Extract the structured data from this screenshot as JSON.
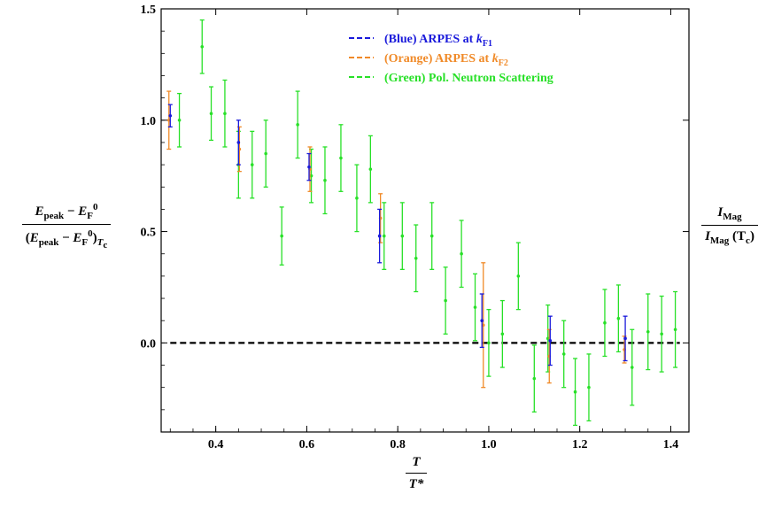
{
  "chart_data": {
    "type": "scatter",
    "title": "",
    "xlabel": {
      "numerator": "T",
      "denominator": "T*"
    },
    "ylabel_left": {
      "numerator": "E",
      "num_sub": "peak",
      "num_minus": " − ",
      "num_e2": "E",
      "num_e2_sub": "F",
      "num_e2_sup": "0",
      "den_open": "(",
      "den_e": "E",
      "den_sub": "peak",
      "den_minus": " − ",
      "den_e2": "E",
      "den_e2_sub": "F",
      "den_e2_sup": "0",
      "den_close": ")",
      "den_outer_sub": "T",
      "den_outer_sub_sub": "c"
    },
    "ylabel_right": {
      "numerator": "I",
      "num_sub": "Mag",
      "den": "I",
      "den_sub": "Mag",
      "den_tail": " (T",
      "den_tail_sub": "c",
      "den_close": ")"
    },
    "xlim": [
      0.28,
      1.44
    ],
    "ylim": [
      -0.4,
      1.5
    ],
    "x_ticks": [
      0.4,
      0.6,
      0.8,
      1.0,
      1.2,
      1.4
    ],
    "x_tick_labels": [
      "0.4",
      "0.6",
      "0.8",
      "1.0",
      "1.2",
      "1.4"
    ],
    "y_ticks": [
      0.0,
      0.5,
      1.0,
      1.5
    ],
    "y_tick_labels": [
      "0.0",
      "0.5",
      "1.0",
      "1.5"
    ],
    "reference_line": {
      "y": 0.0,
      "style": "dashed",
      "color": "#000000"
    },
    "legend": {
      "placement": "top-right",
      "entries": [
        {
          "prefix": "(Blue) ARPES at ",
          "k": "k",
          "sub": "F1",
          "color": "#1a1adb"
        },
        {
          "prefix": "(Orange) ARPES at ",
          "k": "k",
          "sub": "F2",
          "color": "#f08a28"
        },
        {
          "prefix": "(Green) Pol. Neutron Scattering",
          "k": "",
          "sub": "",
          "color": "#28e028"
        }
      ]
    },
    "series": [
      {
        "name": "(Blue) ARPES at kF1",
        "color": "#1a1adb",
        "points": [
          {
            "x": 0.3,
            "y": 1.02,
            "err": 0.05
          },
          {
            "x": 0.45,
            "y": 0.9,
            "err": 0.1
          },
          {
            "x": 0.605,
            "y": 0.79,
            "err": 0.06
          },
          {
            "x": 0.76,
            "y": 0.48,
            "err": 0.12
          },
          {
            "x": 0.985,
            "y": 0.1,
            "err": 0.12
          },
          {
            "x": 1.135,
            "y": 0.01,
            "err": 0.11
          },
          {
            "x": 1.3,
            "y": 0.02,
            "err": 0.1
          }
        ]
      },
      {
        "name": "(Orange) ARPES at kF2",
        "color": "#f08a28",
        "points": [
          {
            "x": 0.297,
            "y": 1.0,
            "err": 0.13
          },
          {
            "x": 0.452,
            "y": 0.87,
            "err": 0.1
          },
          {
            "x": 0.607,
            "y": 0.78,
            "err": 0.1
          },
          {
            "x": 0.762,
            "y": 0.56,
            "err": 0.11
          },
          {
            "x": 0.988,
            "y": 0.08,
            "err": 0.28
          },
          {
            "x": 1.133,
            "y": -0.06,
            "err": 0.12
          },
          {
            "x": 1.298,
            "y": -0.03,
            "err": 0.06
          }
        ]
      },
      {
        "name": "(Green) Pol. Neutron Scattering",
        "color": "#28e028",
        "points": [
          {
            "x": 0.32,
            "y": 1.0,
            "err": 0.12
          },
          {
            "x": 0.37,
            "y": 1.33,
            "err": 0.12
          },
          {
            "x": 0.39,
            "y": 1.03,
            "err": 0.12
          },
          {
            "x": 0.42,
            "y": 1.03,
            "err": 0.15
          },
          {
            "x": 0.45,
            "y": 0.8,
            "err": 0.15
          },
          {
            "x": 0.48,
            "y": 0.8,
            "err": 0.15
          },
          {
            "x": 0.51,
            "y": 0.85,
            "err": 0.15
          },
          {
            "x": 0.545,
            "y": 0.48,
            "err": 0.13
          },
          {
            "x": 0.58,
            "y": 0.98,
            "err": 0.15
          },
          {
            "x": 0.61,
            "y": 0.75,
            "err": 0.12
          },
          {
            "x": 0.64,
            "y": 0.73,
            "err": 0.15
          },
          {
            "x": 0.675,
            "y": 0.83,
            "err": 0.15
          },
          {
            "x": 0.71,
            "y": 0.65,
            "err": 0.15
          },
          {
            "x": 0.74,
            "y": 0.78,
            "err": 0.15
          },
          {
            "x": 0.77,
            "y": 0.48,
            "err": 0.15
          },
          {
            "x": 0.81,
            "y": 0.48,
            "err": 0.15
          },
          {
            "x": 0.84,
            "y": 0.38,
            "err": 0.15
          },
          {
            "x": 0.875,
            "y": 0.48,
            "err": 0.15
          },
          {
            "x": 0.905,
            "y": 0.19,
            "err": 0.15
          },
          {
            "x": 0.94,
            "y": 0.4,
            "err": 0.15
          },
          {
            "x": 0.97,
            "y": 0.16,
            "err": 0.15
          },
          {
            "x": 1.0,
            "y": 0.0,
            "err": 0.15
          },
          {
            "x": 1.03,
            "y": 0.04,
            "err": 0.15
          },
          {
            "x": 1.065,
            "y": 0.3,
            "err": 0.15
          },
          {
            "x": 1.1,
            "y": -0.16,
            "err": 0.15
          },
          {
            "x": 1.13,
            "y": 0.02,
            "err": 0.15
          },
          {
            "x": 1.165,
            "y": -0.05,
            "err": 0.15
          },
          {
            "x": 1.19,
            "y": -0.22,
            "err": 0.15
          },
          {
            "x": 1.22,
            "y": -0.2,
            "err": 0.15
          },
          {
            "x": 1.255,
            "y": 0.09,
            "err": 0.15
          },
          {
            "x": 1.285,
            "y": 0.11,
            "err": 0.15
          },
          {
            "x": 1.315,
            "y": -0.11,
            "err": 0.17
          },
          {
            "x": 1.35,
            "y": 0.05,
            "err": 0.17
          },
          {
            "x": 1.38,
            "y": 0.04,
            "err": 0.17
          },
          {
            "x": 1.41,
            "y": 0.06,
            "err": 0.17
          }
        ]
      }
    ]
  }
}
